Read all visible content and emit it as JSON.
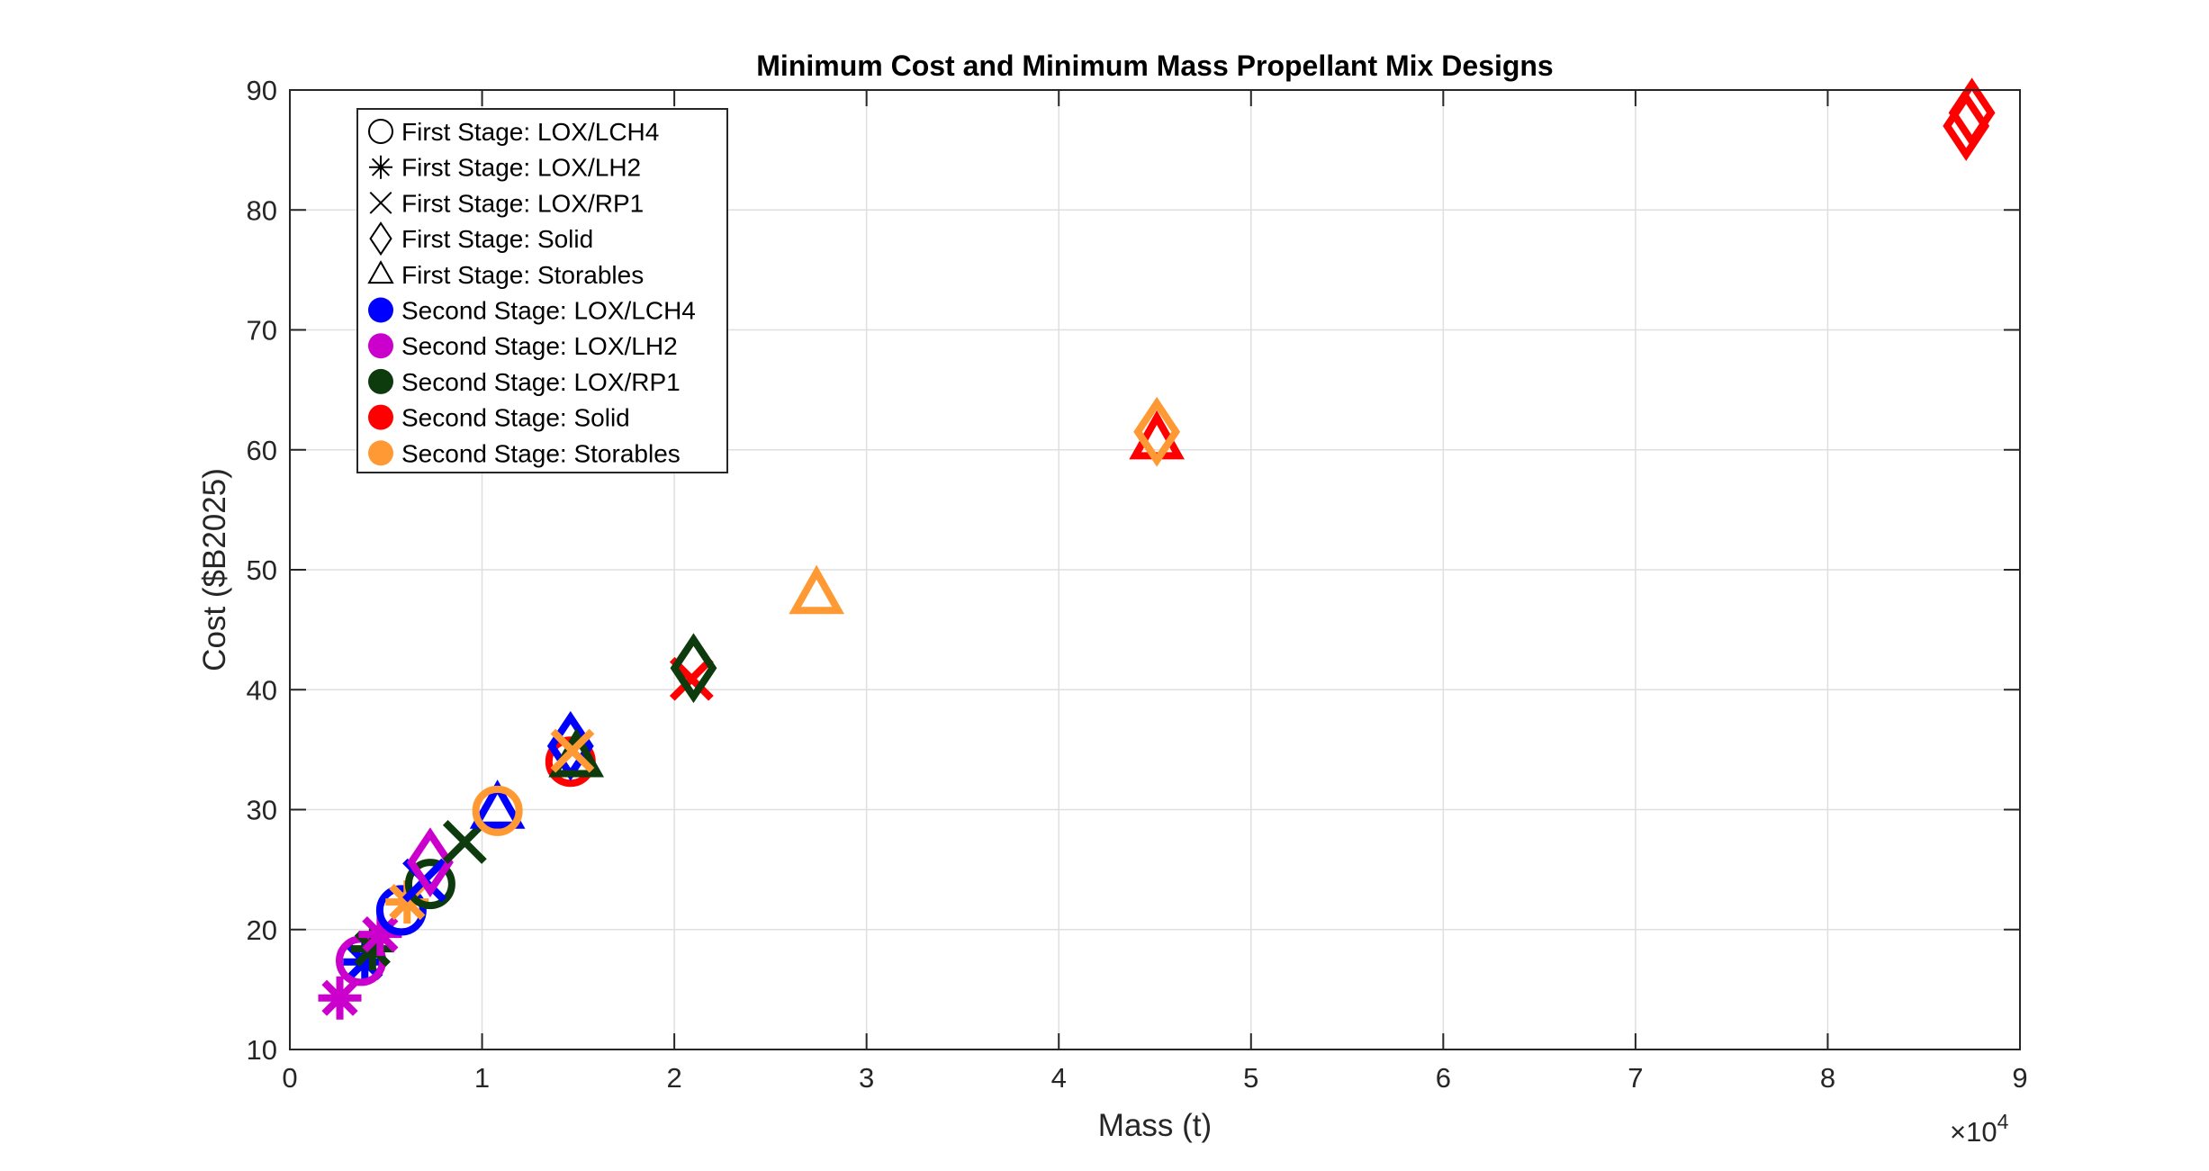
{
  "chart_data": {
    "type": "scatter",
    "title": "Minimum Cost and Minimum Mass Propellant Mix Designs",
    "xlabel": "Mass (t)",
    "ylabel": "Cost ($B2025)",
    "x_exponent_label": "×10",
    "x_exponent_power": "4",
    "x_scale": 10000,
    "xlim": [
      0,
      90000
    ],
    "ylim": [
      10,
      90
    ],
    "x_ticks": [
      0,
      10000,
      20000,
      30000,
      40000,
      50000,
      60000,
      70000,
      80000,
      90000
    ],
    "x_tick_labels": [
      "0",
      "1",
      "2",
      "3",
      "4",
      "5",
      "6",
      "7",
      "8",
      "9"
    ],
    "y_ticks": [
      10,
      20,
      30,
      40,
      50,
      60,
      70,
      80,
      90
    ],
    "y_tick_labels": [
      "10",
      "20",
      "30",
      "40",
      "50",
      "60",
      "70",
      "80",
      "90"
    ],
    "grid": true,
    "legend_placement": "top-left",
    "legend": [
      {
        "label": "First Stage: LOX/LCH4",
        "marker": "circle",
        "color": "#000000",
        "filled": false
      },
      {
        "label": "First Stage: LOX/LH2",
        "marker": "asterisk",
        "color": "#000000",
        "filled": false
      },
      {
        "label": "First Stage: LOX/RP1",
        "marker": "x",
        "color": "#000000",
        "filled": false
      },
      {
        "label": "First Stage: Solid",
        "marker": "diamond",
        "color": "#000000",
        "filled": false
      },
      {
        "label": "First Stage: Storables",
        "marker": "triangle",
        "color": "#000000",
        "filled": false
      },
      {
        "label": "Second Stage: LOX/LCH4",
        "marker": "dot",
        "color": "#0000ff",
        "filled": true
      },
      {
        "label": "Second Stage: LOX/LH2",
        "marker": "dot",
        "color": "#cc00cc",
        "filled": true
      },
      {
        "label": "Second Stage: LOX/RP1",
        "marker": "dot",
        "color": "#0e3b0e",
        "filled": true
      },
      {
        "label": "Second Stage: Solid",
        "marker": "dot",
        "color": "#ff0000",
        "filled": true
      },
      {
        "label": "Second Stage: Storables",
        "marker": "dot",
        "color": "#ff9933",
        "filled": true
      }
    ],
    "points": [
      {
        "x": 2600,
        "y": 14.3,
        "marker": "asterisk",
        "color": "#cc00cc"
      },
      {
        "x": 3900,
        "y": 17.3,
        "marker": "asterisk",
        "color": "#0000ff"
      },
      {
        "x": 3700,
        "y": 17.4,
        "marker": "circle",
        "color": "#cc00cc"
      },
      {
        "x": 4300,
        "y": 18.4,
        "marker": "asterisk",
        "color": "#0e3b0e"
      },
      {
        "x": 4700,
        "y": 19.6,
        "marker": "asterisk",
        "color": "#cc00cc"
      },
      {
        "x": 5800,
        "y": 21.6,
        "marker": "circle",
        "color": "#0000ff"
      },
      {
        "x": 6100,
        "y": 22.3,
        "marker": "asterisk",
        "color": "#ff9933"
      },
      {
        "x": 7300,
        "y": 23.8,
        "marker": "circle",
        "color": "#0e3b0e"
      },
      {
        "x": 7000,
        "y": 24.1,
        "marker": "x",
        "color": "#0000ff"
      },
      {
        "x": 7300,
        "y": 25.6,
        "marker": "diamond",
        "color": "#cc00cc"
      },
      {
        "x": 9100,
        "y": 27.3,
        "marker": "x",
        "color": "#0e3b0e"
      },
      {
        "x": 10800,
        "y": 30.0,
        "marker": "triangle",
        "color": "#0000ff"
      },
      {
        "x": 10800,
        "y": 29.9,
        "marker": "circle",
        "color": "#ff9933"
      },
      {
        "x": 14600,
        "y": 34.0,
        "marker": "circle",
        "color": "#ff0000"
      },
      {
        "x": 14600,
        "y": 35.3,
        "marker": "diamond",
        "color": "#0000ff"
      },
      {
        "x": 14900,
        "y": 34.3,
        "marker": "triangle",
        "color": "#0e3b0e"
      },
      {
        "x": 14700,
        "y": 34.9,
        "marker": "x",
        "color": "#ff9933"
      },
      {
        "x": 20900,
        "y": 40.9,
        "marker": "x",
        "color": "#ff0000"
      },
      {
        "x": 21000,
        "y": 41.8,
        "marker": "diamond",
        "color": "#0e3b0e"
      },
      {
        "x": 27400,
        "y": 47.9,
        "marker": "triangle",
        "color": "#ff9933"
      },
      {
        "x": 45100,
        "y": 60.8,
        "marker": "triangle",
        "color": "#ff0000"
      },
      {
        "x": 45100,
        "y": 61.5,
        "marker": "diamond",
        "color": "#ff9933"
      },
      {
        "x": 87200,
        "y": 87.0,
        "marker": "diamond",
        "color": "#ff0000"
      },
      {
        "x": 87500,
        "y": 88.1,
        "marker": "diamond",
        "color": "#ff0000"
      }
    ]
  }
}
